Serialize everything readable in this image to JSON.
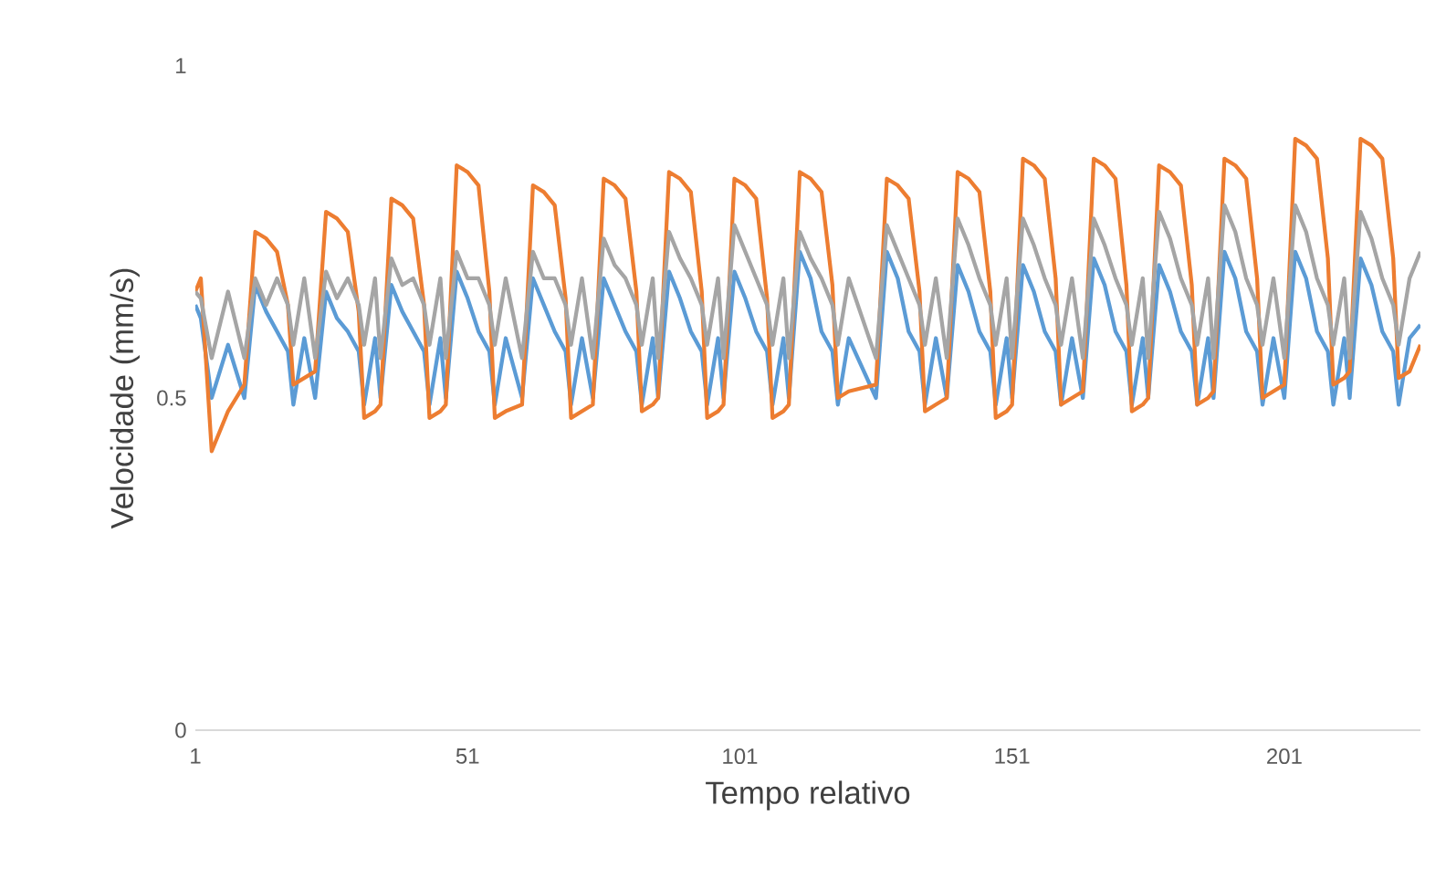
{
  "chart_data": {
    "type": "line",
    "xlabel": "Tempo relativo",
    "ylabel": "Velocidade (mm/s)",
    "xlim": [
      1,
      226
    ],
    "ylim": [
      0,
      1
    ],
    "xticks": [
      1,
      51,
      101,
      151,
      201
    ],
    "yticks": [
      0,
      0.5,
      1
    ],
    "grid": false,
    "legend": false,
    "line_style": "solid",
    "x": [
      1,
      2,
      4,
      7,
      10,
      12,
      14,
      16,
      18,
      19,
      21,
      23,
      25,
      27,
      29,
      31,
      32,
      34,
      35,
      37,
      39,
      41,
      43,
      44,
      46,
      47,
      49,
      51,
      53,
      55,
      56,
      58,
      61,
      63,
      65,
      67,
      69,
      70,
      72,
      74,
      76,
      78,
      80,
      82,
      83,
      85,
      86,
      88,
      90,
      92,
      94,
      95,
      97,
      98,
      100,
      102,
      104,
      106,
      107,
      109,
      110,
      112,
      114,
      116,
      118,
      119,
      121,
      126,
      128,
      130,
      132,
      134,
      135,
      137,
      139,
      141,
      143,
      145,
      147,
      148,
      150,
      151,
      153,
      155,
      157,
      159,
      160,
      162,
      164,
      166,
      168,
      170,
      172,
      173,
      175,
      176,
      178,
      180,
      182,
      184,
      185,
      187,
      188,
      190,
      192,
      194,
      196,
      197,
      199,
      201,
      203,
      205,
      207,
      209,
      210,
      212,
      213,
      215,
      217,
      219,
      221,
      222,
      224,
      226
    ],
    "series": [
      {
        "color": "#5b9bd5",
        "values": [
          0.64,
          0.62,
          0.5,
          0.58,
          0.5,
          0.67,
          0.63,
          0.6,
          0.57,
          0.49,
          0.59,
          0.5,
          0.66,
          0.62,
          0.6,
          0.57,
          0.49,
          0.59,
          0.5,
          0.67,
          0.63,
          0.6,
          0.57,
          0.49,
          0.59,
          0.5,
          0.69,
          0.65,
          0.6,
          0.57,
          0.49,
          0.59,
          0.5,
          0.68,
          0.64,
          0.6,
          0.57,
          0.49,
          0.59,
          0.5,
          0.68,
          0.64,
          0.6,
          0.57,
          0.49,
          0.59,
          0.5,
          0.69,
          0.65,
          0.6,
          0.57,
          0.49,
          0.59,
          0.5,
          0.69,
          0.65,
          0.6,
          0.57,
          0.49,
          0.59,
          0.5,
          0.72,
          0.68,
          0.6,
          0.57,
          0.49,
          0.59,
          0.5,
          0.72,
          0.68,
          0.6,
          0.57,
          0.49,
          0.59,
          0.5,
          0.7,
          0.66,
          0.6,
          0.57,
          0.49,
          0.59,
          0.5,
          0.7,
          0.66,
          0.6,
          0.57,
          0.49,
          0.59,
          0.5,
          0.71,
          0.67,
          0.6,
          0.57,
          0.49,
          0.59,
          0.5,
          0.7,
          0.66,
          0.6,
          0.57,
          0.49,
          0.59,
          0.5,
          0.72,
          0.68,
          0.6,
          0.57,
          0.49,
          0.59,
          0.5,
          0.72,
          0.68,
          0.6,
          0.57,
          0.49,
          0.59,
          0.5,
          0.71,
          0.67,
          0.6,
          0.57,
          0.49,
          0.59,
          0.61
        ]
      },
      {
        "color": "#ed7d31",
        "values": [
          0.66,
          0.68,
          0.42,
          0.48,
          0.52,
          0.75,
          0.74,
          0.72,
          0.64,
          0.52,
          0.53,
          0.54,
          0.78,
          0.77,
          0.75,
          0.63,
          0.47,
          0.48,
          0.49,
          0.8,
          0.79,
          0.77,
          0.64,
          0.47,
          0.48,
          0.49,
          0.85,
          0.84,
          0.82,
          0.66,
          0.47,
          0.48,
          0.49,
          0.82,
          0.81,
          0.79,
          0.65,
          0.47,
          0.48,
          0.49,
          0.83,
          0.82,
          0.8,
          0.66,
          0.48,
          0.49,
          0.5,
          0.84,
          0.83,
          0.81,
          0.66,
          0.47,
          0.48,
          0.49,
          0.83,
          0.82,
          0.8,
          0.65,
          0.47,
          0.48,
          0.49,
          0.84,
          0.83,
          0.81,
          0.67,
          0.5,
          0.51,
          0.52,
          0.83,
          0.82,
          0.8,
          0.66,
          0.48,
          0.49,
          0.5,
          0.84,
          0.83,
          0.81,
          0.66,
          0.47,
          0.48,
          0.49,
          0.86,
          0.85,
          0.83,
          0.68,
          0.49,
          0.5,
          0.51,
          0.86,
          0.85,
          0.83,
          0.67,
          0.48,
          0.49,
          0.5,
          0.85,
          0.84,
          0.82,
          0.67,
          0.49,
          0.5,
          0.51,
          0.86,
          0.85,
          0.83,
          0.68,
          0.5,
          0.51,
          0.52,
          0.89,
          0.88,
          0.86,
          0.71,
          0.52,
          0.53,
          0.54,
          0.89,
          0.88,
          0.86,
          0.71,
          0.53,
          0.54,
          0.58
        ]
      },
      {
        "color": "#a5a5a5",
        "values": [
          0.66,
          0.65,
          0.56,
          0.66,
          0.56,
          0.68,
          0.64,
          0.68,
          0.64,
          0.58,
          0.68,
          0.56,
          0.69,
          0.65,
          0.68,
          0.64,
          0.58,
          0.68,
          0.56,
          0.71,
          0.67,
          0.68,
          0.64,
          0.58,
          0.68,
          0.56,
          0.72,
          0.68,
          0.68,
          0.64,
          0.58,
          0.68,
          0.56,
          0.72,
          0.68,
          0.68,
          0.64,
          0.58,
          0.68,
          0.56,
          0.74,
          0.7,
          0.68,
          0.64,
          0.58,
          0.68,
          0.56,
          0.75,
          0.71,
          0.68,
          0.64,
          0.58,
          0.68,
          0.56,
          0.76,
          0.72,
          0.68,
          0.64,
          0.58,
          0.68,
          0.56,
          0.75,
          0.71,
          0.68,
          0.64,
          0.58,
          0.68,
          0.56,
          0.76,
          0.72,
          0.68,
          0.64,
          0.58,
          0.68,
          0.56,
          0.77,
          0.73,
          0.68,
          0.64,
          0.58,
          0.68,
          0.56,
          0.77,
          0.73,
          0.68,
          0.64,
          0.58,
          0.68,
          0.56,
          0.77,
          0.73,
          0.68,
          0.64,
          0.58,
          0.68,
          0.56,
          0.78,
          0.74,
          0.68,
          0.64,
          0.58,
          0.68,
          0.56,
          0.79,
          0.75,
          0.68,
          0.64,
          0.58,
          0.68,
          0.56,
          0.79,
          0.75,
          0.68,
          0.64,
          0.58,
          0.68,
          0.56,
          0.78,
          0.74,
          0.68,
          0.64,
          0.58,
          0.68,
          0.72
        ]
      }
    ]
  }
}
